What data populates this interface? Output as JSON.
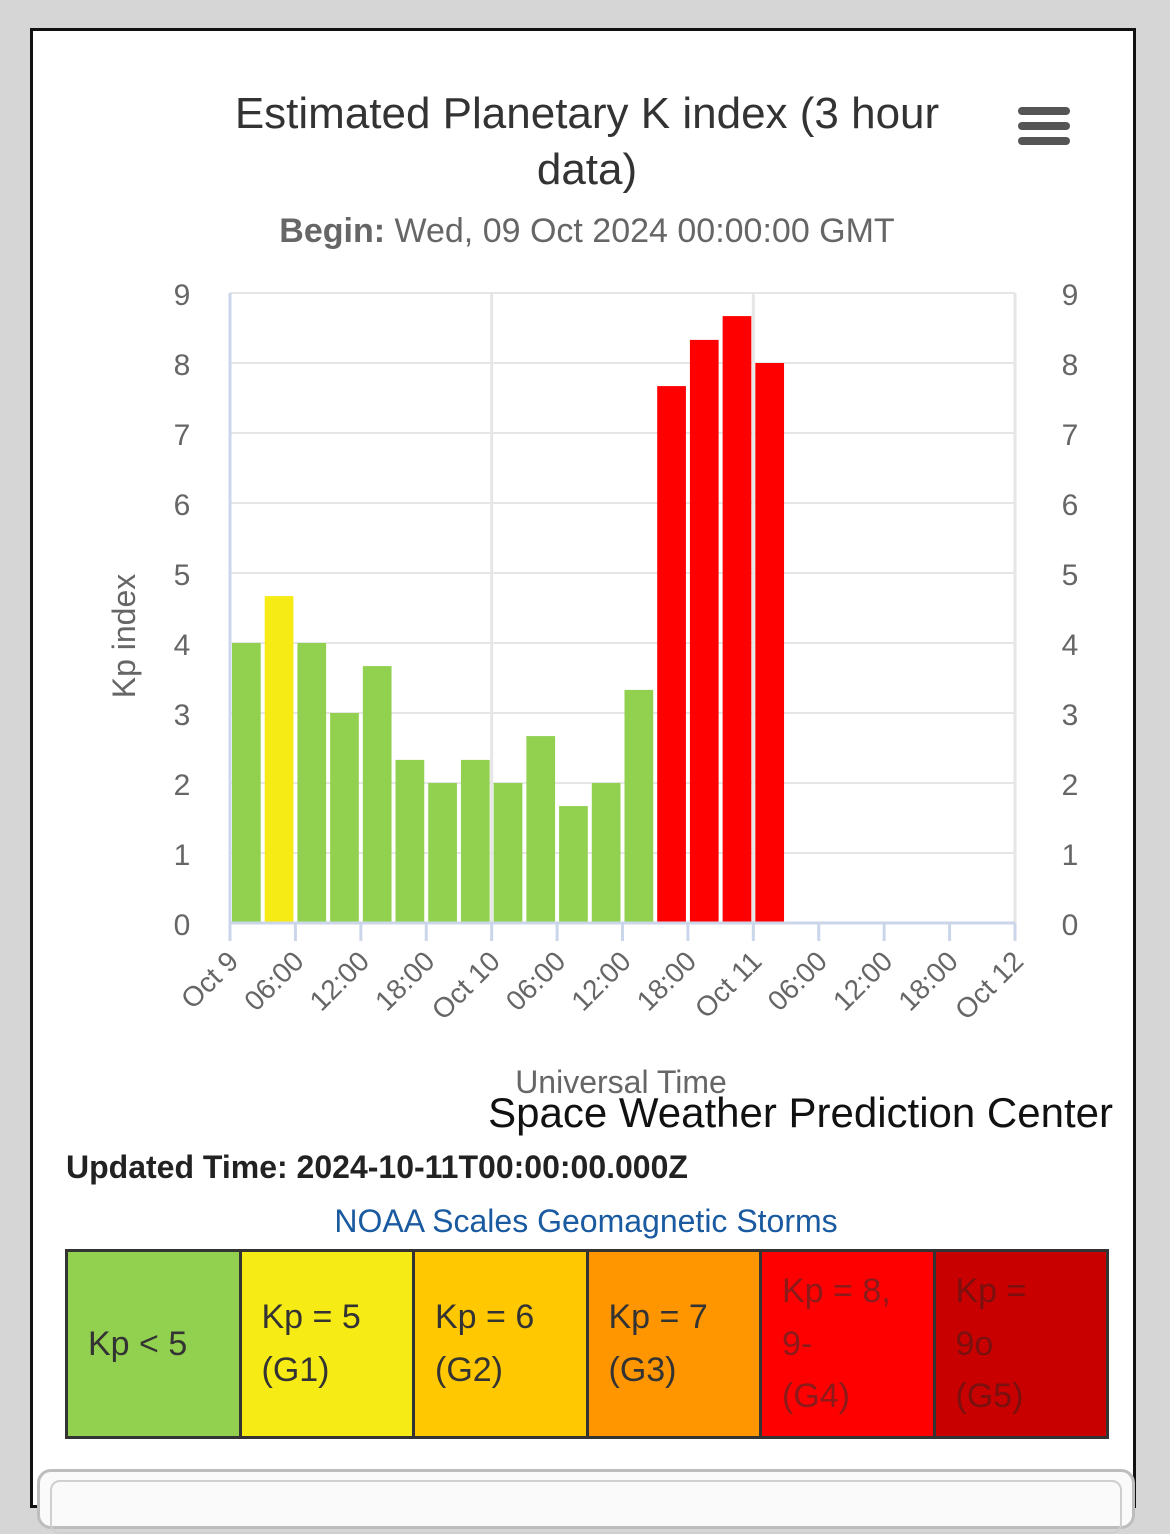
{
  "chart_data": {
    "type": "bar",
    "title": "Estimated Planetary K index (3 hour data)",
    "subtitle_label": "Begin:",
    "subtitle_value": "Wed, 09 Oct 2024 00:00:00 GMT",
    "ylabel": "Kp index",
    "xlabel": "Universal Time",
    "ylim": [
      0,
      9
    ],
    "yticks": [
      "0",
      "1",
      "2",
      "3",
      "4",
      "5",
      "6",
      "7",
      "8",
      "9"
    ],
    "xrange_hours": [
      0,
      72
    ],
    "xticks": [
      {
        "hour": 0,
        "label": "Oct 9"
      },
      {
        "hour": 6,
        "label": "06:00"
      },
      {
        "hour": 12,
        "label": "12:00"
      },
      {
        "hour": 18,
        "label": "18:00"
      },
      {
        "hour": 24,
        "label": "Oct 10"
      },
      {
        "hour": 30,
        "label": "06:00"
      },
      {
        "hour": 36,
        "label": "12:00"
      },
      {
        "hour": 42,
        "label": "18:00"
      },
      {
        "hour": 48,
        "label": "Oct 11"
      },
      {
        "hour": 54,
        "label": "06:00"
      },
      {
        "hour": 60,
        "label": "12:00"
      },
      {
        "hour": 66,
        "label": "18:00"
      },
      {
        "hour": 72,
        "label": "Oct 12"
      }
    ],
    "bars": [
      {
        "start_hour": 0,
        "value": 4.0,
        "color": "#92d050"
      },
      {
        "start_hour": 3,
        "value": 4.67,
        "color": "#f6eb14"
      },
      {
        "start_hour": 6,
        "value": 4.0,
        "color": "#92d050"
      },
      {
        "start_hour": 9,
        "value": 3.0,
        "color": "#92d050"
      },
      {
        "start_hour": 12,
        "value": 3.67,
        "color": "#92d050"
      },
      {
        "start_hour": 15,
        "value": 2.33,
        "color": "#92d050"
      },
      {
        "start_hour": 18,
        "value": 2.0,
        "color": "#92d050"
      },
      {
        "start_hour": 21,
        "value": 2.33,
        "color": "#92d050"
      },
      {
        "start_hour": 24,
        "value": 2.0,
        "color": "#92d050"
      },
      {
        "start_hour": 27,
        "value": 2.67,
        "color": "#92d050"
      },
      {
        "start_hour": 30,
        "value": 1.67,
        "color": "#92d050"
      },
      {
        "start_hour": 33,
        "value": 2.0,
        "color": "#92d050"
      },
      {
        "start_hour": 36,
        "value": 3.33,
        "color": "#92d050"
      },
      {
        "start_hour": 39,
        "value": 7.67,
        "color": "#ff0000"
      },
      {
        "start_hour": 42,
        "value": 8.33,
        "color": "#ff0000"
      },
      {
        "start_hour": 45,
        "value": 8.67,
        "color": "#ff0000"
      },
      {
        "start_hour": 48,
        "value": 8.0,
        "color": "#ff0000"
      }
    ],
    "grid": true,
    "right_axis_mirror": true
  },
  "credit": "Space Weather Prediction Center",
  "updated": "Updated Time: 2024-10-11T00:00:00.000Z",
  "scales_link": "NOAA Scales Geomagnetic Storms",
  "scales": [
    {
      "lines": [
        "Kp < 5"
      ],
      "bg": "#92d050",
      "fg": "#333333"
    },
    {
      "lines": [
        "Kp = 5",
        "(G1)"
      ],
      "bg": "#f6eb14",
      "fg": "#333333"
    },
    {
      "lines": [
        "Kp = 6",
        "(G2)"
      ],
      "bg": "#ffc800",
      "fg": "#333333"
    },
    {
      "lines": [
        "Kp = 7",
        "(G3)"
      ],
      "bg": "#ff9600",
      "fg": "#333333"
    },
    {
      "lines": [
        "Kp = 8, 9-",
        "(G4)"
      ],
      "bg": "#ff0000",
      "fg": "#8b1a1a"
    },
    {
      "lines": [
        "Kp =",
        "9o",
        "(G5)"
      ],
      "bg": "#c80000",
      "fg": "#7a1010"
    }
  ],
  "colors": {
    "green": "#92d050",
    "yellow": "#f6eb14",
    "red": "#ff0000",
    "link": "#1a5aa0"
  }
}
